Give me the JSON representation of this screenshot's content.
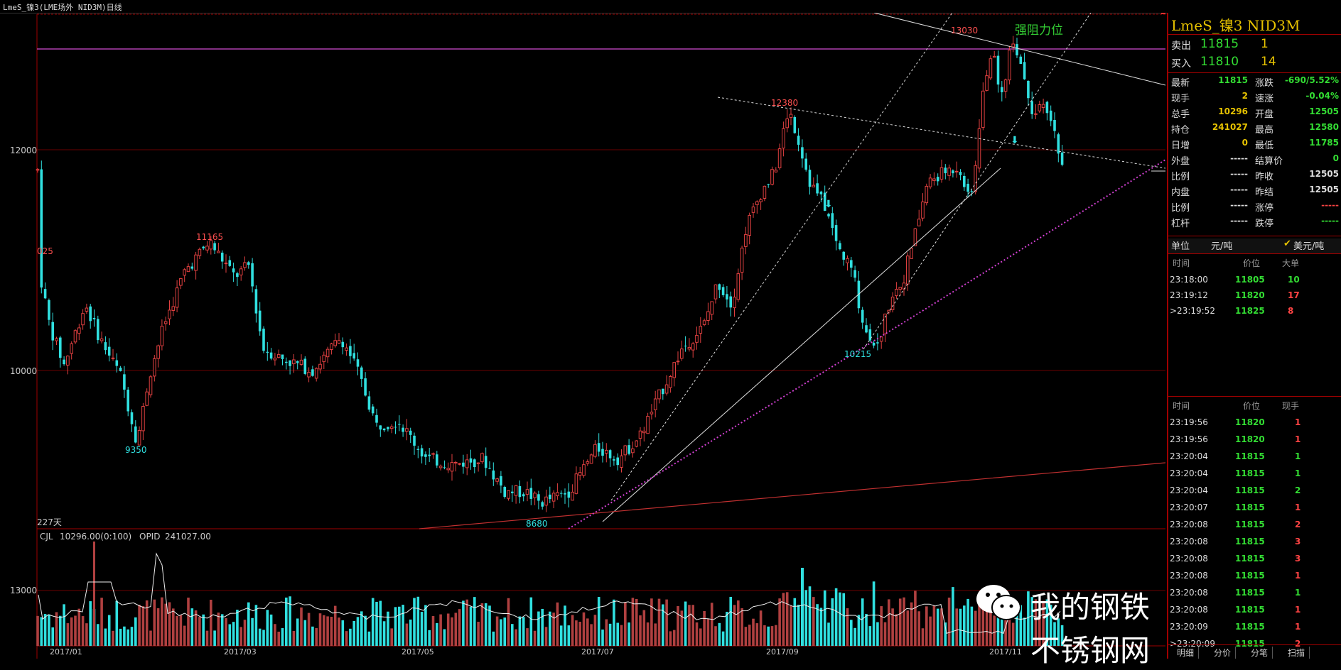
{
  "window": {
    "title": "LmeS_镍3(LME场外 NID3M)日线"
  },
  "chart_data": {
    "type": "candlestick",
    "instrument": "LmeS_镍3 NID3M",
    "period": "日线",
    "price_axis_ticks": [
      "12000",
      "10000"
    ],
    "volume_axis_ticks": [
      "13000"
    ],
    "date_ticks": [
      "2017/01",
      "2017/03",
      "2017/05",
      "2017/07",
      "2017/09",
      "2017/11"
    ],
    "annotations": {
      "high_left": "11165",
      "low_left": "9350",
      "low_mid": "8680",
      "peak_aug": "12380",
      "low_sep": "10215",
      "peak_oct": "13030",
      "first_label": "025",
      "days": "227天",
      "resistance": "强阻力位"
    },
    "volume_info": {
      "cjl": "CJL",
      "cjl_value": "10296.00(0:100)",
      "opid": "OPID",
      "opid_value": "241027.00"
    }
  },
  "panel": {
    "title": "LmeS_镍3 NID3M",
    "sell": {
      "label": "卖出",
      "price": "11815",
      "qty": "1"
    },
    "buy": {
      "label": "买入",
      "price": "11810",
      "qty": "14"
    },
    "stats": [
      {
        "l1": "最新",
        "v1": "11815",
        "c1": "green",
        "l2": "涨跌",
        "v2": "-690/5.52%",
        "c2": "green"
      },
      {
        "l1": "现手",
        "v1": "2",
        "c1": "yellow",
        "l2": "速涨",
        "v2": "-0.04%",
        "c2": "green"
      },
      {
        "l1": "总手",
        "v1": "10296",
        "c1": "yellow",
        "l2": "开盘",
        "v2": "12505",
        "c2": "green"
      },
      {
        "l1": "持仓",
        "v1": "241027",
        "c1": "yellow",
        "l2": "最高",
        "v2": "12580",
        "c2": "green"
      },
      {
        "l1": "日增",
        "v1": "0",
        "c1": "yellow",
        "l2": "最低",
        "v2": "11785",
        "c2": "green"
      },
      {
        "l1": "外盘",
        "v1": "-----",
        "c1": "white",
        "l2": "结算价",
        "v2": "0",
        "c2": "green"
      },
      {
        "l1": "比例",
        "v1": "-----",
        "c1": "white",
        "l2": "昨收",
        "v2": "12505",
        "c2": "white"
      },
      {
        "l1": "内盘",
        "v1": "-----",
        "c1": "white",
        "l2": "昨结",
        "v2": "12505",
        "c2": "white"
      },
      {
        "l1": "比例",
        "v1": "-----",
        "c1": "white",
        "l2": "涨停",
        "v2": "-----",
        "c2": "red"
      },
      {
        "l1": "杠杆",
        "v1": "-----",
        "c1": "white",
        "l2": "跌停",
        "v2": "-----",
        "c2": "green"
      }
    ],
    "unit": {
      "label": "单位",
      "cny": "元/吨",
      "usd": "美元/吨",
      "check": "✔"
    },
    "big_header": {
      "time": "时间",
      "price": "价位",
      "vol": "大单"
    },
    "big_orders": [
      {
        "time": "23:18:00",
        "price": "11805",
        "vol": "10",
        "vc": "green"
      },
      {
        "time": "23:19:12",
        "price": "11820",
        "vol": "17",
        "vc": "red"
      },
      {
        "time": ">23:19:52",
        "price": "11825",
        "vol": "8",
        "vc": "red"
      }
    ],
    "tick_header": {
      "time": "时间",
      "price": "价位",
      "vol": "现手"
    },
    "ticks": [
      {
        "time": "23:19:56",
        "price": "11820",
        "vol": "1",
        "vc": "red"
      },
      {
        "time": "23:19:56",
        "price": "11820",
        "vol": "1",
        "vc": "red"
      },
      {
        "time": "23:20:04",
        "price": "11815",
        "vol": "1",
        "vc": "green"
      },
      {
        "time": "23:20:04",
        "price": "11815",
        "vol": "1",
        "vc": "green"
      },
      {
        "time": "23:20:04",
        "price": "11815",
        "vol": "2",
        "vc": "green"
      },
      {
        "time": "23:20:07",
        "price": "11815",
        "vol": "1",
        "vc": "red"
      },
      {
        "time": "23:20:08",
        "price": "11815",
        "vol": "2",
        "vc": "red"
      },
      {
        "time": "23:20:08",
        "price": "11815",
        "vol": "3",
        "vc": "red"
      },
      {
        "time": "23:20:08",
        "price": "11815",
        "vol": "3",
        "vc": "red"
      },
      {
        "time": "23:20:08",
        "price": "11815",
        "vol": "1",
        "vc": "red"
      },
      {
        "time": "23:20:08",
        "price": "11815",
        "vol": "1",
        "vc": "green"
      },
      {
        "time": "23:20:08",
        "price": "11815",
        "vol": "1",
        "vc": "red"
      },
      {
        "time": "23:20:09",
        "price": "11815",
        "vol": "1",
        "vc": "red"
      },
      {
        "time": ">23:20:09",
        "price": "11815",
        "vol": "2",
        "vc": "red"
      }
    ],
    "tabs": [
      "明细",
      "分价",
      "分笔",
      "扫描"
    ]
  },
  "watermark": {
    "text": "我的钢铁不锈钢网"
  }
}
